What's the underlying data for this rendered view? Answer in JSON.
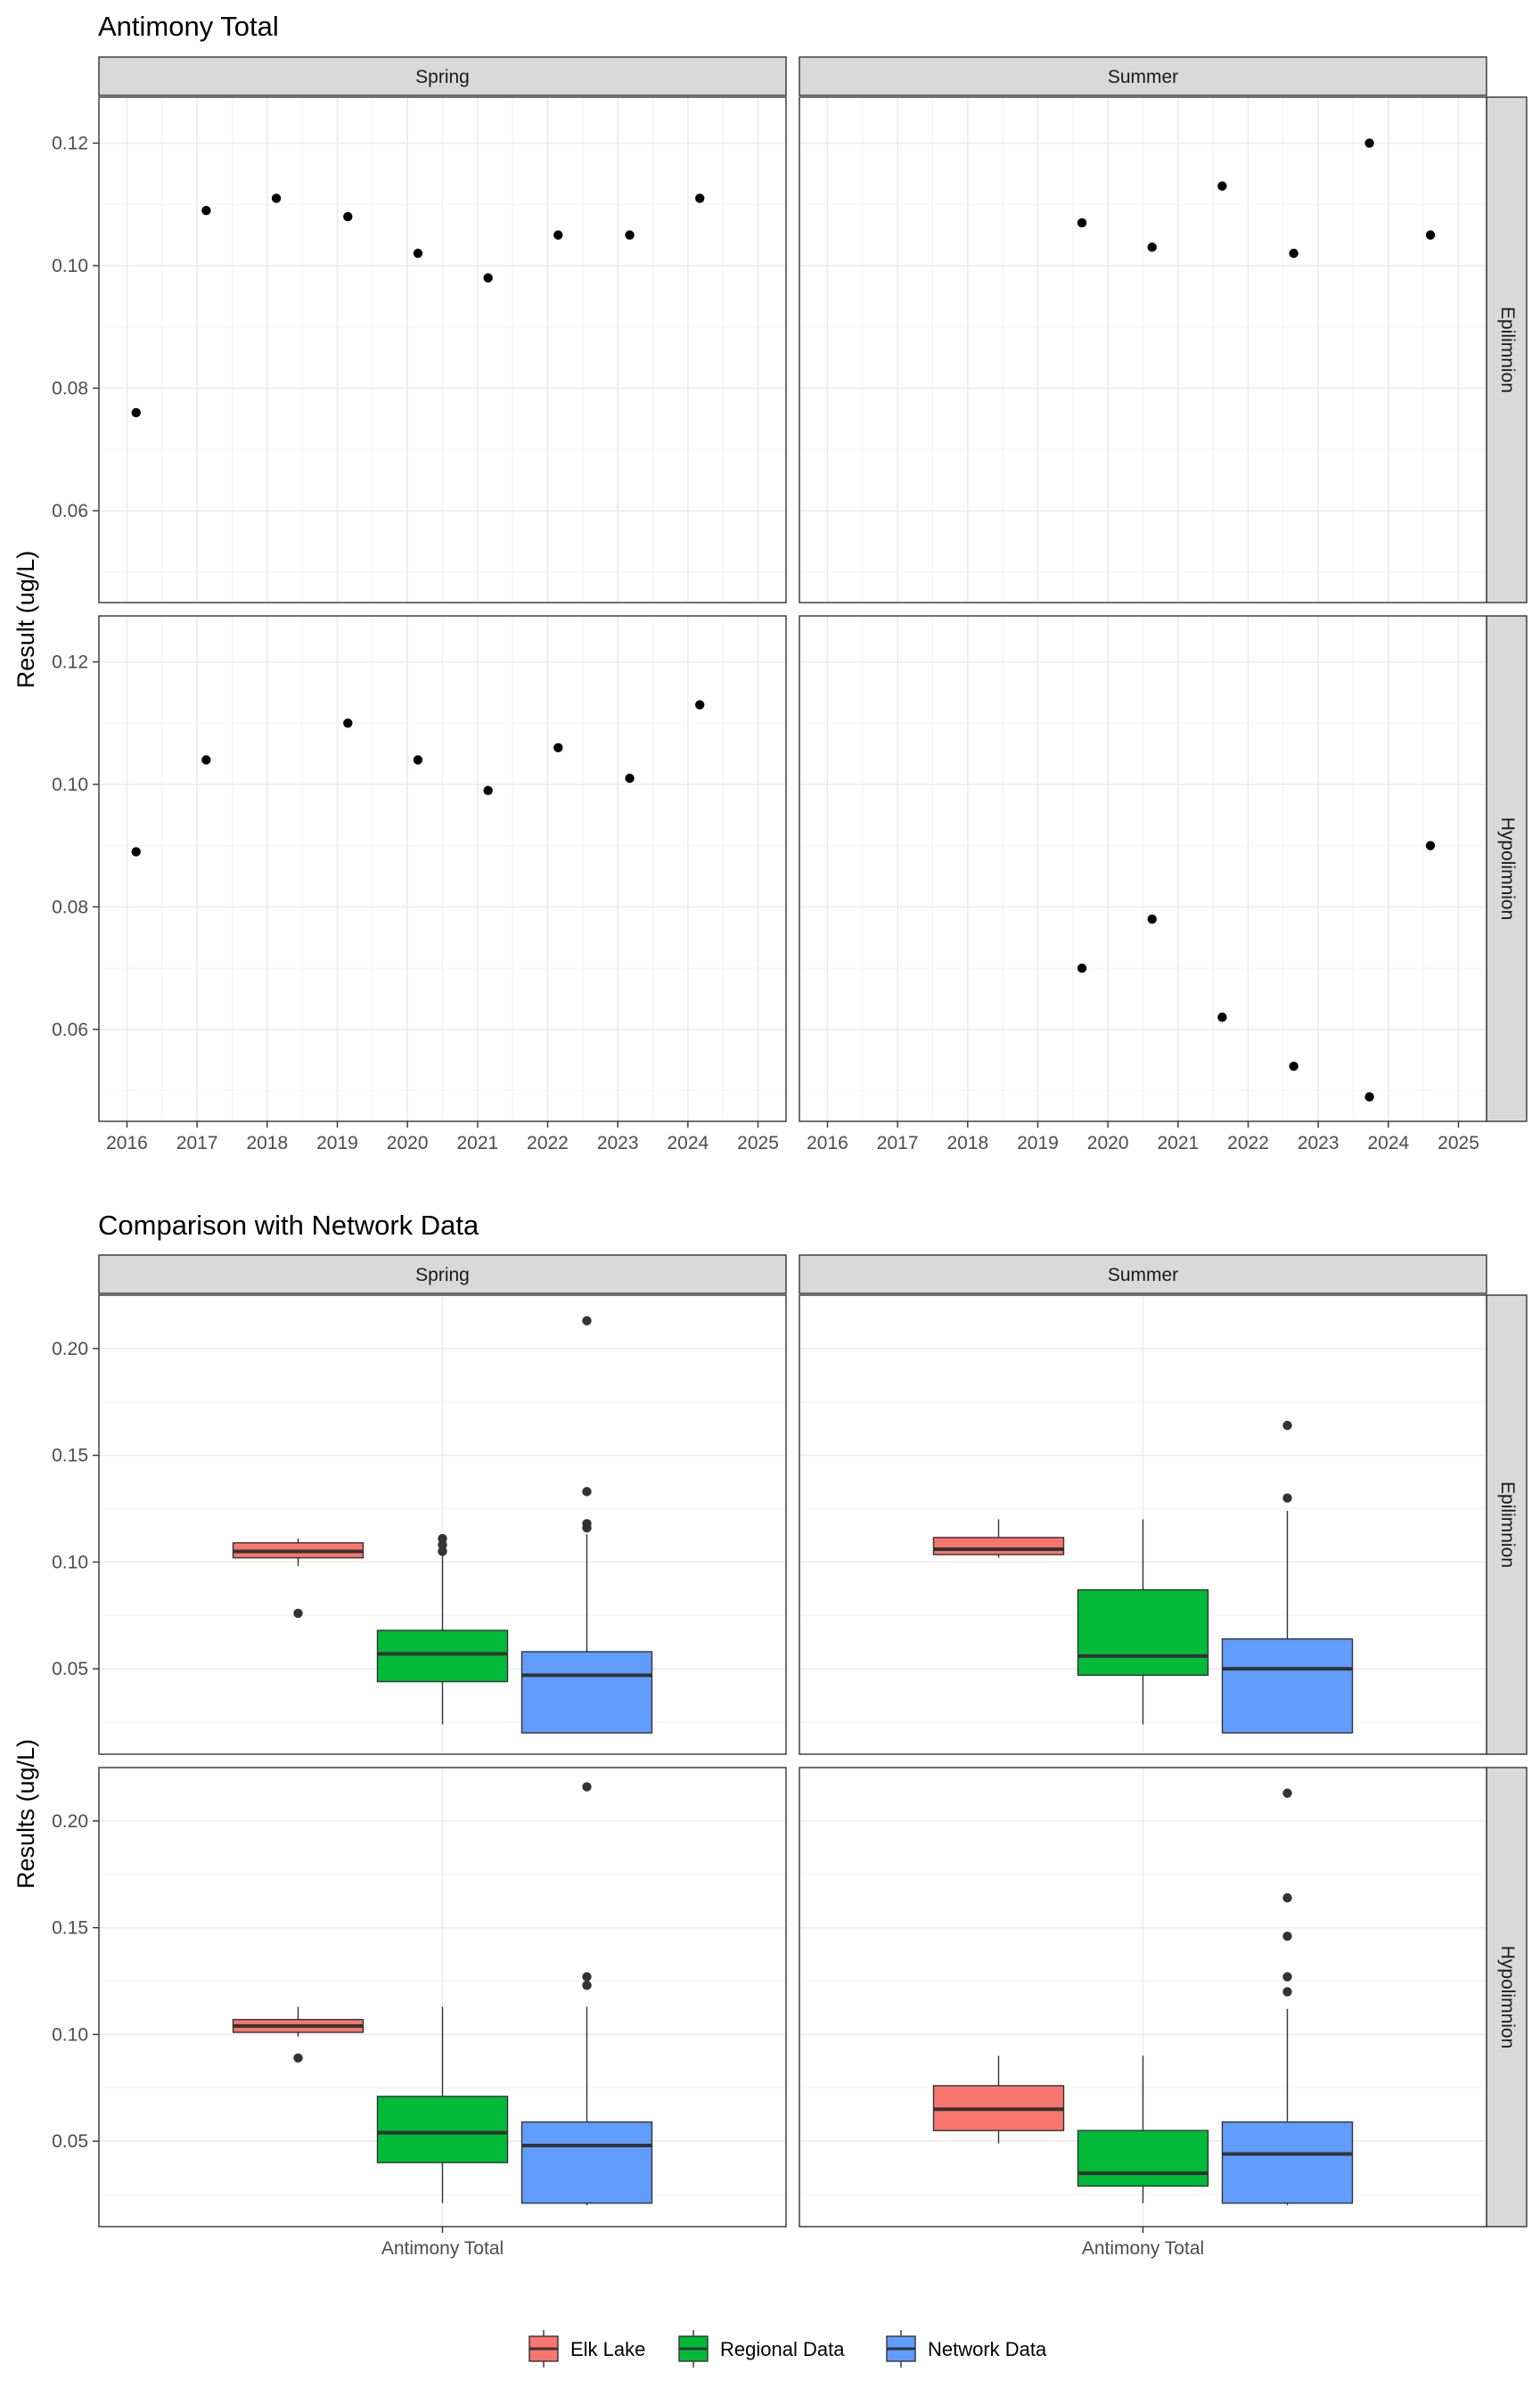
{
  "colors": {
    "elk_lake": "#F8766D",
    "regional": "#00BA38",
    "network": "#619CFF",
    "points": "#000000",
    "strip_bg": "#D9D9D9",
    "grid": "#EBEBEB"
  },
  "chart_data": [
    {
      "type": "scatter",
      "title": "Antimony Total",
      "xlabel": "",
      "ylabel": "Result (ug/L)",
      "xlim": [
        2015.6,
        2025.4
      ],
      "ylim": [
        0.045,
        0.1275
      ],
      "x_ticks": [
        2016,
        2017,
        2018,
        2019,
        2020,
        2021,
        2022,
        2023,
        2024,
        2025
      ],
      "x_tick_labels": [
        "2016",
        "2017",
        "2018",
        "2019",
        "2020",
        "2021",
        "2022",
        "2023",
        "2024",
        "2025"
      ],
      "y_ticks": [
        0.06,
        0.08,
        0.1,
        0.12
      ],
      "y_tick_labels": [
        "0.06",
        "0.08",
        "0.10",
        "0.12"
      ],
      "columns": [
        "Spring",
        "Summer"
      ],
      "rows": [
        "Epilimnion",
        "Hypolimnion"
      ],
      "grid": true,
      "panels": [
        {
          "season": "Spring",
          "layer": "Epilimnion",
          "x": [
            2016.13,
            2017.13,
            2018.13,
            2019.15,
            2020.15,
            2021.15,
            2022.15,
            2023.17,
            2024.17
          ],
          "y": [
            0.076,
            0.109,
            0.111,
            0.108,
            0.102,
            0.098,
            0.105,
            0.105,
            0.111
          ]
        },
        {
          "season": "Summer",
          "layer": "Epilimnion",
          "x": [
            2019.63,
            2020.63,
            2021.63,
            2022.65,
            2023.73,
            2024.6
          ],
          "y": [
            0.107,
            0.103,
            0.113,
            0.102,
            0.12,
            0.105
          ]
        },
        {
          "season": "Spring",
          "layer": "Hypolimnion",
          "x": [
            2016.13,
            2017.13,
            2019.15,
            2020.15,
            2021.15,
            2022.15,
            2023.17,
            2024.17
          ],
          "y": [
            0.089,
            0.104,
            0.11,
            0.104,
            0.099,
            0.106,
            0.101,
            0.113
          ]
        },
        {
          "season": "Summer",
          "layer": "Hypolimnion",
          "x": [
            2019.63,
            2020.63,
            2021.63,
            2022.65,
            2023.73,
            2024.6
          ],
          "y": [
            0.07,
            0.078,
            0.062,
            0.054,
            0.049,
            0.09
          ]
        }
      ]
    },
    {
      "type": "box",
      "title": "Comparison with Network Data",
      "xlabel": "",
      "ylabel": "Results (ug/L)",
      "category": "Antimony Total",
      "ylim": [
        0.01,
        0.225
      ],
      "y_ticks": [
        0.05,
        0.1,
        0.15,
        0.2
      ],
      "y_tick_labels": [
        "0.05",
        "0.10",
        "0.15",
        "0.20"
      ],
      "columns": [
        "Spring",
        "Summer"
      ],
      "rows": [
        "Epilimnion",
        "Hypolimnion"
      ],
      "grid": true,
      "legend_position": "bottom",
      "legend": [
        "Elk Lake",
        "Regional Data",
        "Network Data"
      ],
      "panels": [
        {
          "season": "Spring",
          "layer": "Epilimnion",
          "boxes": [
            {
              "group": "Elk Lake",
              "lower_whisker": 0.098,
              "q1": 0.102,
              "median": 0.105,
              "q3": 0.109,
              "upper_whisker": 0.111,
              "outliers": [
                0.076
              ]
            },
            {
              "group": "Regional Data",
              "lower_whisker": 0.024,
              "q1": 0.044,
              "median": 0.057,
              "q3": 0.068,
              "upper_whisker": 0.103,
              "outliers": [
                0.105,
                0.108,
                0.111
              ]
            },
            {
              "group": "Network Data",
              "lower_whisker": 0.02,
              "q1": 0.02,
              "median": 0.047,
              "q3": 0.058,
              "upper_whisker": 0.113,
              "outliers": [
                0.116,
                0.118,
                0.133,
                0.213
              ]
            }
          ]
        },
        {
          "season": "Summer",
          "layer": "Epilimnion",
          "boxes": [
            {
              "group": "Elk Lake",
              "lower_whisker": 0.102,
              "q1": 0.1035,
              "median": 0.106,
              "q3": 0.1115,
              "upper_whisker": 0.12,
              "outliers": []
            },
            {
              "group": "Regional Data",
              "lower_whisker": 0.024,
              "q1": 0.047,
              "median": 0.056,
              "q3": 0.087,
              "upper_whisker": 0.12,
              "outliers": []
            },
            {
              "group": "Network Data",
              "lower_whisker": 0.02,
              "q1": 0.02,
              "median": 0.05,
              "q3": 0.064,
              "upper_whisker": 0.124,
              "outliers": [
                0.13,
                0.164
              ]
            }
          ]
        },
        {
          "season": "Spring",
          "layer": "Hypolimnion",
          "boxes": [
            {
              "group": "Elk Lake",
              "lower_whisker": 0.099,
              "q1": 0.101,
              "median": 0.104,
              "q3": 0.107,
              "upper_whisker": 0.113,
              "outliers": [
                0.089
              ]
            },
            {
              "group": "Regional Data",
              "lower_whisker": 0.021,
              "q1": 0.04,
              "median": 0.054,
              "q3": 0.071,
              "upper_whisker": 0.113,
              "outliers": []
            },
            {
              "group": "Network Data",
              "lower_whisker": 0.02,
              "q1": 0.021,
              "median": 0.048,
              "q3": 0.059,
              "upper_whisker": 0.113,
              "outliers": [
                0.123,
                0.127,
                0.216
              ]
            }
          ]
        },
        {
          "season": "Summer",
          "layer": "Hypolimnion",
          "boxes": [
            {
              "group": "Elk Lake",
              "lower_whisker": 0.049,
              "q1": 0.055,
              "median": 0.065,
              "q3": 0.076,
              "upper_whisker": 0.09,
              "outliers": []
            },
            {
              "group": "Regional Data",
              "lower_whisker": 0.021,
              "q1": 0.029,
              "median": 0.035,
              "q3": 0.055,
              "upper_whisker": 0.09,
              "outliers": []
            },
            {
              "group": "Network Data",
              "lower_whisker": 0.02,
              "q1": 0.021,
              "median": 0.044,
              "q3": 0.059,
              "upper_whisker": 0.112,
              "outliers": [
                0.12,
                0.127,
                0.146,
                0.164,
                0.213
              ]
            }
          ]
        }
      ]
    }
  ]
}
